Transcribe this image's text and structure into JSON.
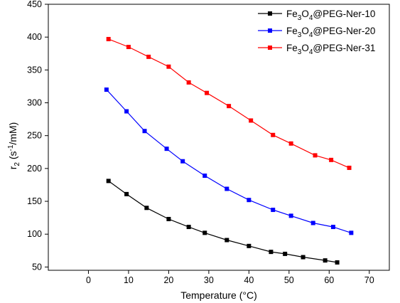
{
  "chart_data": {
    "type": "line",
    "xlabel": "Temperature (°C)",
    "ylabel": {
      "base": "r",
      "sub": "2",
      "pre": " (s",
      "sup": "-1",
      "post": "/mM)"
    },
    "xlim": [
      -10,
      75
    ],
    "ylim": [
      45,
      450
    ],
    "xticks": [
      0,
      10,
      20,
      30,
      40,
      50,
      60,
      70
    ],
    "yticks": [
      50,
      100,
      150,
      200,
      250,
      300,
      350,
      400,
      450
    ],
    "legend_position": "top-right",
    "grid": false,
    "series": [
      {
        "name": {
          "pre": "Fe",
          "s1": "3",
          "mid": "O",
          "s2": "4",
          "post": "@PEG-Ner-10"
        },
        "color": "#000000",
        "points": [
          [
            5,
            181
          ],
          [
            9.5,
            161
          ],
          [
            14.5,
            140
          ],
          [
            20,
            123
          ],
          [
            25,
            111
          ],
          [
            29,
            102
          ],
          [
            34.5,
            91
          ],
          [
            40,
            82
          ],
          [
            45.5,
            73
          ],
          [
            49,
            70
          ],
          [
            53.5,
            65
          ],
          [
            59,
            60
          ],
          [
            62,
            57
          ]
        ]
      },
      {
        "name": {
          "pre": "Fe",
          "s1": "3",
          "mid": "O",
          "s2": "4",
          "post": "@PEG-Ner-20"
        },
        "color": "#0000FF",
        "points": [
          [
            4.5,
            320
          ],
          [
            9.5,
            287
          ],
          [
            14,
            257
          ],
          [
            19.5,
            230
          ],
          [
            23.5,
            211
          ],
          [
            29,
            189
          ],
          [
            34.5,
            169
          ],
          [
            40,
            152
          ],
          [
            46,
            137
          ],
          [
            50.5,
            128
          ],
          [
            56,
            117
          ],
          [
            61,
            111
          ],
          [
            65.5,
            102
          ]
        ]
      },
      {
        "name": {
          "pre": "Fe",
          "s1": "3",
          "mid": "O",
          "s2": "4",
          "post": "@PEG-Ner-31"
        },
        "color": "#FF0000",
        "points": [
          [
            5,
            397
          ],
          [
            10,
            385
          ],
          [
            15,
            370
          ],
          [
            20,
            355
          ],
          [
            25,
            331
          ],
          [
            29.5,
            315
          ],
          [
            35,
            295
          ],
          [
            40.5,
            273
          ],
          [
            46,
            251
          ],
          [
            50.5,
            238
          ],
          [
            56.5,
            220
          ],
          [
            60.5,
            213
          ],
          [
            65,
            201
          ]
        ]
      }
    ]
  }
}
